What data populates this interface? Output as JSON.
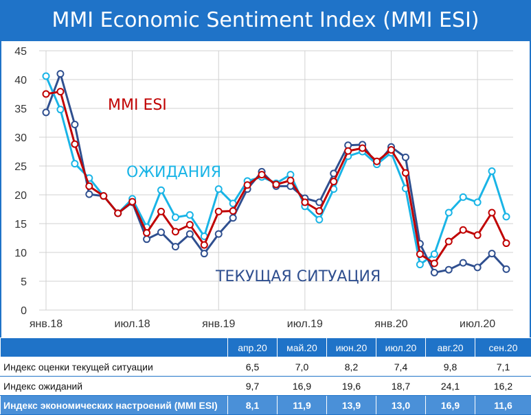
{
  "title": "MMI Economic Sentiment Index (MMI ESI)",
  "colors": {
    "brand": "#1f73c8",
    "current": "#2f4f8f",
    "expectations": "#19b4e6",
    "esi": "#c00000",
    "grid": "#d0d0d0",
    "highlight_row": "#4a90d8"
  },
  "chart_data": {
    "type": "line",
    "x": [
      "янв.18",
      "фев.18",
      "мар.18",
      "апр.18",
      "май.18",
      "июн.18",
      "июл.18",
      "авг.18",
      "сен.18",
      "окт.18",
      "ноя.18",
      "дек.18",
      "янв.19",
      "фев.19",
      "мар.19",
      "апр.19",
      "май.19",
      "июн.19",
      "июл.19",
      "авг.19",
      "сен.19",
      "окт.19",
      "ноя.19",
      "дек.19",
      "янв.20",
      "фев.20",
      "мар.20",
      "апр.20",
      "май.20",
      "июн.20",
      "июл.20",
      "авг.20",
      "сен.20"
    ],
    "x_ticks": [
      {
        "index": 0,
        "label": "янв.18"
      },
      {
        "index": 6,
        "label": "июл.18"
      },
      {
        "index": 12,
        "label": "янв.19"
      },
      {
        "index": 18,
        "label": "июл.19"
      },
      {
        "index": 24,
        "label": "янв.20"
      },
      {
        "index": 30,
        "label": "июл.20"
      }
    ],
    "y_ticks": [
      0,
      5,
      10,
      15,
      20,
      25,
      30,
      35,
      40,
      45
    ],
    "ylim": [
      0,
      45
    ],
    "grid": true,
    "series": [
      {
        "name": "ТЕКУЩАЯ СИТУАЦИЯ",
        "color_key": "current",
        "values": [
          34.3,
          41.0,
          32.2,
          20.1,
          19.8,
          16.8,
          18.7,
          12.3,
          13.5,
          11.0,
          13.2,
          9.8,
          13.2,
          16.0,
          21.0,
          24.0,
          21.5,
          21.5,
          19.4,
          18.7,
          23.7,
          28.6,
          28.7,
          25.3,
          28.3,
          26.5,
          11.5,
          6.5,
          7.0,
          8.2,
          7.4,
          9.8,
          7.1
        ]
      },
      {
        "name": "ОЖИДАНИЯ",
        "color_key": "expectations",
        "values": [
          40.6,
          34.8,
          25.4,
          22.9,
          19.8,
          16.8,
          19.3,
          14.4,
          20.8,
          16.1,
          16.5,
          12.8,
          21.0,
          18.5,
          22.4,
          23.1,
          22.0,
          23.5,
          18.0,
          15.7,
          21.0,
          26.7,
          27.5,
          25.3,
          27.3,
          21.1,
          7.9,
          9.7,
          16.9,
          19.6,
          18.7,
          24.1,
          16.2
        ]
      },
      {
        "name": "MMI ESI",
        "color_key": "esi",
        "values": [
          37.5,
          37.9,
          28.8,
          21.5,
          19.8,
          16.8,
          18.8,
          13.4,
          17.1,
          13.6,
          14.8,
          11.3,
          17.1,
          17.2,
          21.7,
          23.5,
          21.8,
          22.5,
          18.7,
          17.2,
          22.3,
          27.6,
          28.1,
          25.8,
          27.8,
          23.8,
          9.7,
          8.1,
          11.9,
          13.9,
          13.0,
          16.9,
          11.6
        ]
      }
    ],
    "annotations": [
      {
        "text": "MMI ESI",
        "color_key": "esi"
      },
      {
        "text": "ОЖИДАНИЯ",
        "color_key": "expectations"
      },
      {
        "text": "ТЕКУЩАЯ СИТУАЦИЯ",
        "color_key": "current"
      }
    ]
  },
  "table": {
    "columns": [
      "апр.20",
      "май.20",
      "июн.20",
      "июл.20",
      "авг.20",
      "сен.20"
    ],
    "rows": [
      {
        "label": "Индекс оценки текущей ситуации",
        "values": [
          "6,5",
          "7,0",
          "8,2",
          "7,4",
          "9,8",
          "7,1"
        ]
      },
      {
        "label": "Индекс ожиданий",
        "values": [
          "9,7",
          "16,9",
          "19,6",
          "18,7",
          "24,1",
          "16,2"
        ]
      },
      {
        "label": "Индекс экономических настроений (MMI ESI)",
        "values": [
          "8,1",
          "11,9",
          "13,9",
          "13,0",
          "16,9",
          "11,6"
        ]
      }
    ]
  }
}
